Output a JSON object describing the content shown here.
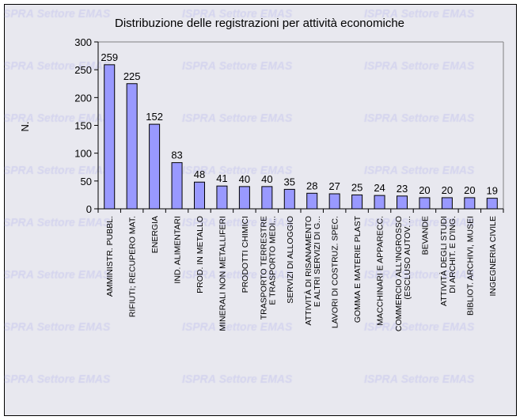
{
  "watermark": "ISPRA Settore EMAS",
  "colors": {
    "bar": "#9999ff",
    "background": "#e8e8ef",
    "border": "#000000"
  },
  "chart_data": {
    "type": "bar",
    "title": "Distribuzione delle registrazioni per attività economiche",
    "xlabel": "",
    "ylabel": "N.",
    "ylim": [
      0,
      300
    ],
    "yticks": [
      0,
      50,
      100,
      150,
      200,
      250,
      300
    ],
    "grid": false,
    "legend": "none",
    "categories": [
      "AMMINISTR. PUBBL.",
      "RIFIUTI; RECUPERO MAT.",
      "ENERGIA",
      "IND. ALIMENTARI",
      "PROD. IN METALLO",
      "MINERALI NON METALLIFERI",
      "PRODOTTI CHIMICI",
      "TRASPORTO TERRESTRE E TRASPORTO MEDI...",
      "SERVIZI DI ALLOGGIO",
      "ATTIVITÀ DI RISANAMENTO E ALTRI SERVIZI DI G...",
      "LAVORI DI COSTRUZ. SPEC.",
      "GOMMA E MATERIE PLAST",
      "MACCHINARI E APPARECC.",
      "COMMERCIO ALL'INGROSSO (ESCLUSO AUTOV. ...",
      "BEVANDE",
      "ATTIVITÀ DEGLI STUDI DI ARCHIT. E D'ING.",
      "BIBLIOT. ARCHIVI, MUSEI",
      "INGEGNERIA CIVILE"
    ],
    "values": [
      259,
      225,
      152,
      83,
      48,
      41,
      40,
      40,
      35,
      28,
      27,
      25,
      24,
      23,
      20,
      20,
      20,
      19
    ]
  }
}
